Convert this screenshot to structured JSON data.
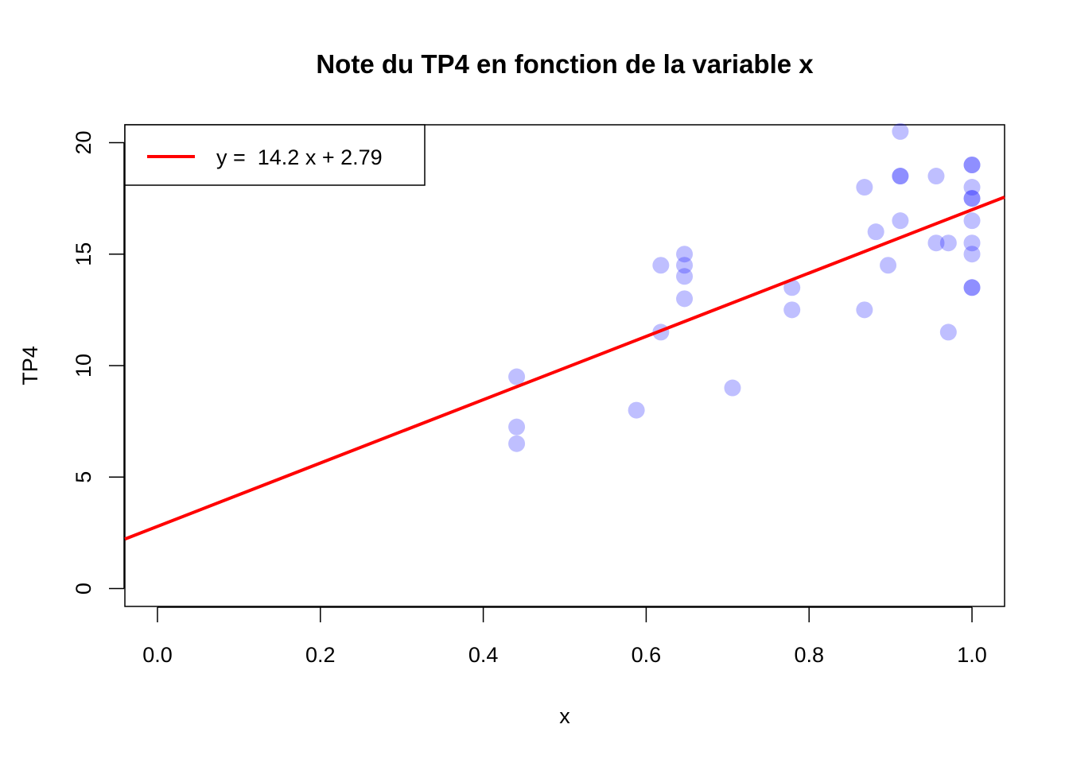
{
  "chart_data": {
    "type": "scatter",
    "title": "Note du TP4 en fonction de la variable x",
    "xlabel": "x",
    "ylabel": "TP4",
    "xlim": [
      -0.04,
      1.04
    ],
    "ylim": [
      -0.8,
      20.8
    ],
    "x_ticks": [
      "0.0",
      "0.2",
      "0.4",
      "0.6",
      "0.8",
      "1.0"
    ],
    "y_ticks": [
      "0",
      "5",
      "10",
      "15",
      "20"
    ],
    "grid": false,
    "legend": {
      "position": "top-left",
      "entries": [
        "y =  14.2 x + 2.79"
      ]
    },
    "point_color": "#0000FF",
    "point_opacity": 0.25,
    "line_color": "#FF0000",
    "points": [
      {
        "x": 0.441,
        "y": 9.5
      },
      {
        "x": 0.441,
        "y": 7.25
      },
      {
        "x": 0.441,
        "y": 6.5
      },
      {
        "x": 0.588,
        "y": 8.0
      },
      {
        "x": 0.618,
        "y": 14.5
      },
      {
        "x": 0.618,
        "y": 11.5
      },
      {
        "x": 0.647,
        "y": 15.0
      },
      {
        "x": 0.647,
        "y": 14.5
      },
      {
        "x": 0.647,
        "y": 14.0
      },
      {
        "x": 0.647,
        "y": 13.0
      },
      {
        "x": 0.706,
        "y": 9.0
      },
      {
        "x": 0.779,
        "y": 13.5
      },
      {
        "x": 0.779,
        "y": 12.5
      },
      {
        "x": 0.868,
        "y": 18.0
      },
      {
        "x": 0.868,
        "y": 12.5
      },
      {
        "x": 0.882,
        "y": 16.0
      },
      {
        "x": 0.897,
        "y": 14.5
      },
      {
        "x": 0.912,
        "y": 20.5
      },
      {
        "x": 0.912,
        "y": 18.5
      },
      {
        "x": 0.912,
        "y": 18.5
      },
      {
        "x": 0.912,
        "y": 16.5
      },
      {
        "x": 0.956,
        "y": 18.5
      },
      {
        "x": 0.956,
        "y": 15.5
      },
      {
        "x": 0.971,
        "y": 15.5
      },
      {
        "x": 0.971,
        "y": 11.5
      },
      {
        "x": 1.0,
        "y": 19.0
      },
      {
        "x": 1.0,
        "y": 19.0
      },
      {
        "x": 1.0,
        "y": 18.0
      },
      {
        "x": 1.0,
        "y": 17.5
      },
      {
        "x": 1.0,
        "y": 17.5
      },
      {
        "x": 1.0,
        "y": 16.5
      },
      {
        "x": 1.0,
        "y": 15.5
      },
      {
        "x": 1.0,
        "y": 15.0
      },
      {
        "x": 1.0,
        "y": 13.5
      },
      {
        "x": 1.0,
        "y": 13.5
      }
    ],
    "regression": {
      "slope": 14.2,
      "intercept": 2.79
    }
  }
}
